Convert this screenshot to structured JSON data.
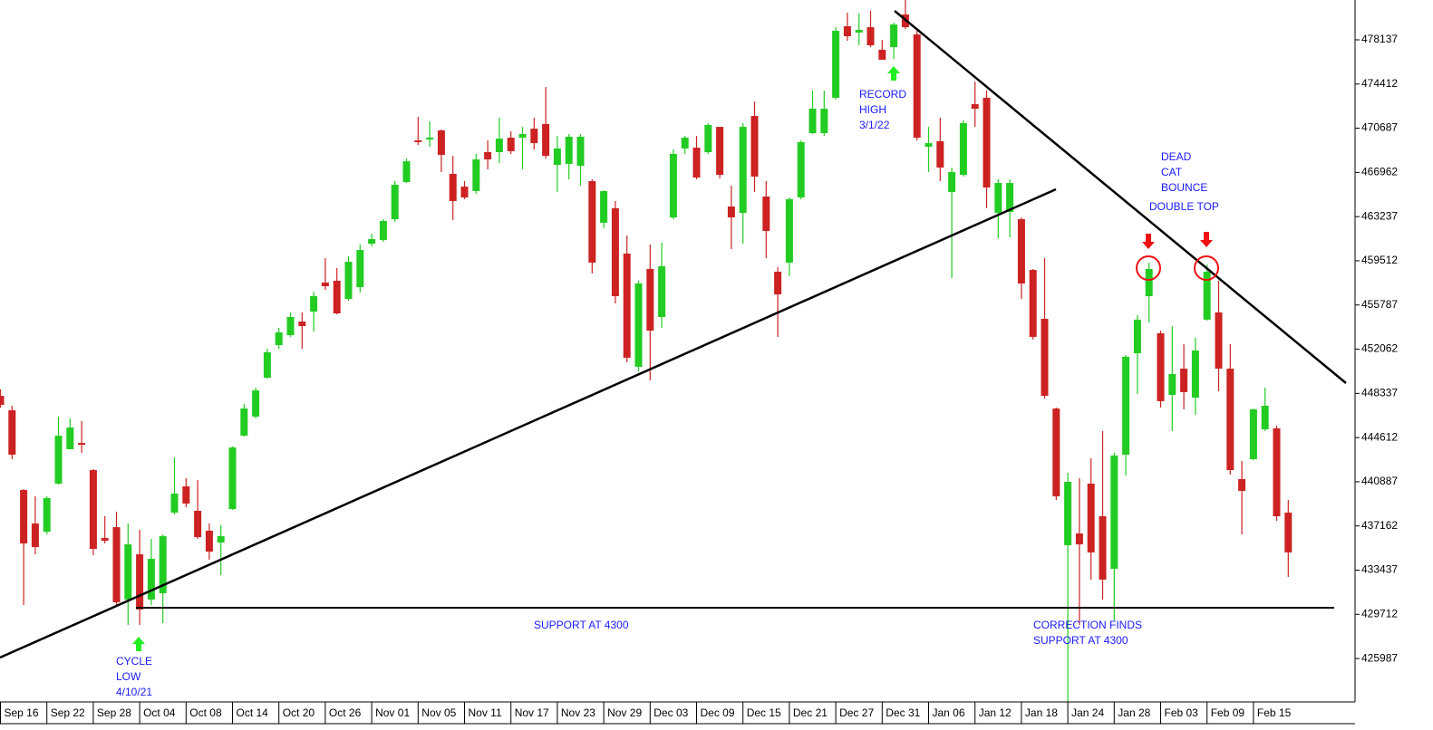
{
  "chart_data": {
    "type": "candlestick",
    "categories": [
      "Sep 16",
      null,
      null,
      null,
      "Sep 22",
      null,
      null,
      null,
      "Sep 28",
      null,
      null,
      null,
      "Oct 04",
      null,
      null,
      null,
      "Oct 08",
      null,
      null,
      null,
      "Oct 14",
      null,
      null,
      null,
      "Oct 20",
      null,
      null,
      null,
      "Oct 26",
      null,
      null,
      null,
      "Nov 01",
      null,
      null,
      null,
      "Nov 05",
      null,
      null,
      null,
      "Nov 11",
      null,
      null,
      null,
      "Nov 17",
      null,
      null,
      null,
      "Nov 23",
      null,
      null,
      null,
      "Nov 29",
      null,
      null,
      null,
      "Dec 03",
      null,
      null,
      null,
      "Dec 09",
      null,
      null,
      null,
      "Dec 15",
      null,
      null,
      null,
      "Dec 21",
      null,
      null,
      null,
      "Dec 27",
      null,
      null,
      null,
      "Dec 31",
      null,
      null,
      null,
      "Jan 06",
      null,
      null,
      null,
      "Jan 12",
      null,
      null,
      null,
      "Jan 18",
      null,
      null,
      null,
      "Jan 24",
      null,
      null,
      null,
      "Jan 28",
      null,
      null,
      null,
      "Feb 03",
      null,
      null,
      null,
      "Feb 09",
      null,
      null,
      null,
      "Feb 15",
      null,
      null,
      null
    ],
    "open": [
      448130,
      446910,
      440190,
      437370,
      436680,
      440730,
      443630,
      444160,
      441870,
      436150,
      437060,
      430960,
      434770,
      430960,
      431490,
      438290,
      440500,
      438440,
      436760,
      435770,
      438590,
      444770,
      446380,
      449660,
      452410,
      453250,
      454390,
      455230,
      457680,
      457830,
      456300,
      457290,
      460960,
      461260,
      463020,
      466150,
      469660,
      469740,
      470500,
      466840,
      465770,
      465390,
      468670,
      468670,
      469890,
      469890,
      470650,
      471040,
      467600,
      467680,
      467520,
      466230,
      462720,
      463940,
      460120,
      450580,
      458820,
      454780,
      463170,
      468980,
      469050,
      468670,
      470800,
      464090,
      463550,
      471720,
      464930,
      458590,
      459360,
      464850,
      470270,
      470270,
      473250,
      479280,
      478750,
      479200,
      477300,
      477520,
      480270,
      478590,
      469130,
      469590,
      465310,
      466760,
      472710,
      473250,
      463550,
      463630,
      463020,
      458740,
      454620,
      447060,
      435540,
      436530,
      440730,
      437980,
      433550,
      443170,
      451720,
      456530,
      453400,
      448210,
      450420,
      447980,
      454550,
      455160,
      450420,
      441110,
      442790,
      445310,
      445390,
      438290
    ],
    "high": [
      448670,
      447290,
      440270,
      439660,
      439660,
      446380,
      446230,
      446000,
      441950,
      437980,
      438360,
      437370,
      436840,
      436070,
      436450,
      442940,
      441190,
      441030,
      437370,
      437220,
      443860,
      447450,
      448820,
      452100,
      453860,
      455160,
      455160,
      456910,
      459740,
      458900,
      459890,
      460880,
      461800,
      463020,
      466230,
      468130,
      471650,
      471260,
      470580,
      468360,
      466230,
      468520,
      469660,
      471570,
      470420,
      470800,
      471570,
      474160,
      470040,
      470200,
      470200,
      466380,
      465460,
      464550,
      461640,
      457830,
      460880,
      461040,
      468900,
      470040,
      470040,
      471110,
      470800,
      465850,
      471110,
      472940,
      466230,
      458970,
      464850,
      469660,
      473860,
      473860,
      479200,
      480420,
      480350,
      480580,
      478130,
      479590,
      481490,
      478900,
      470800,
      471570,
      467370,
      471340,
      474620,
      473860,
      466380,
      466380,
      463170,
      458820,
      459740,
      447140,
      441640,
      441190,
      442870,
      445160,
      443320,
      451570,
      454930,
      459360,
      453630,
      454010,
      452480,
      453020,
      459200,
      457830,
      452480,
      442640,
      447060,
      448820,
      445610,
      439350
    ],
    "low": [
      447140,
      442790,
      430500,
      434770,
      436450,
      440650,
      443630,
      443320,
      434700,
      435690,
      430500,
      428820,
      428820,
      430500,
      428970,
      438130,
      438740,
      436070,
      434320,
      433020,
      438520,
      444700,
      446230,
      449580,
      452100,
      453100,
      452100,
      453550,
      457060,
      455000,
      456150,
      456840,
      460730,
      461110,
      462790,
      466070,
      469280,
      469130,
      466990,
      462940,
      464700,
      465160,
      467220,
      467750,
      468520,
      467220,
      468900,
      468130,
      465310,
      466380,
      465850,
      458440,
      462260,
      455920,
      450960,
      450190,
      449430,
      453860,
      463020,
      468520,
      466380,
      468520,
      466460,
      460500,
      460960,
      465310,
      459740,
      453100,
      458210,
      464700,
      470200,
      470040,
      473100,
      478060,
      477680,
      477520,
      476460,
      476530,
      479050,
      469660,
      466990,
      466230,
      458060,
      466610,
      470800,
      463940,
      461420,
      461490,
      456300,
      452870,
      447900,
      439350,
      422330,
      428820,
      432640,
      430960,
      429200,
      441420,
      448290,
      454320,
      447140,
      445160,
      446990,
      446530,
      454470,
      448520,
      441490,
      436450,
      442710,
      445160,
      437600,
      432870
    ],
    "close": [
      447370,
      443170,
      435690,
      435380,
      439510,
      444770,
      445460,
      444010,
      435230,
      435920,
      430730,
      435610,
      430120,
      434390,
      436300,
      439890,
      439050,
      436220,
      435000,
      436300,
      443780,
      447060,
      448590,
      451800,
      453480,
      454780,
      454010,
      456530,
      457370,
      455080,
      459430,
      460420,
      461340,
      462870,
      465920,
      467900,
      469510,
      469890,
      468440,
      464550,
      464850,
      468060,
      468060,
      469810,
      468750,
      470200,
      469430,
      468360,
      468980,
      469970,
      469970,
      459360,
      465390,
      456530,
      451340,
      457600,
      453630,
      459050,
      468520,
      469890,
      466530,
      470960,
      466760,
      463170,
      470800,
      466610,
      462030,
      456680,
      464700,
      469510,
      472330,
      472330,
      478900,
      478440,
      478980,
      477680,
      476460,
      479430,
      479200,
      469890,
      469430,
      467370,
      466990,
      471110,
      472330,
      465690,
      466070,
      466070,
      457600,
      453100,
      448130,
      439660,
      440880,
      435610,
      434930,
      432640,
      443100,
      451420,
      454550,
      458820,
      447680,
      449970,
      448440,
      451950,
      458590,
      450420,
      441870,
      440120,
      446990,
      447290,
      437980,
      434930
    ],
    "up_color": "#22cc22",
    "down_color": "#cc2222",
    "ylim": [
      422330,
      481494
    ],
    "yticks": [
      425987,
      429712,
      433437,
      437162,
      440887,
      444612,
      448337,
      452062,
      455787,
      459512,
      463237,
      466962,
      470687,
      474412,
      478137
    ],
    "annotations": [
      {
        "lines": [
          "CYCLE",
          "LOW",
          "4/10/21"
        ]
      },
      {
        "lines": [
          "RECORD",
          "HIGH",
          "3/1/22"
        ]
      },
      {
        "lines": [
          "DEAD",
          "CAT",
          "BOUNCE"
        ]
      },
      {
        "lines": [
          "DOUBLE TOP"
        ]
      },
      {
        "lines": [
          "SUPPORT AT 4300"
        ]
      },
      {
        "lines": [
          "CORRECTION FINDS",
          "SUPPORT AT 4300"
        ]
      }
    ]
  }
}
